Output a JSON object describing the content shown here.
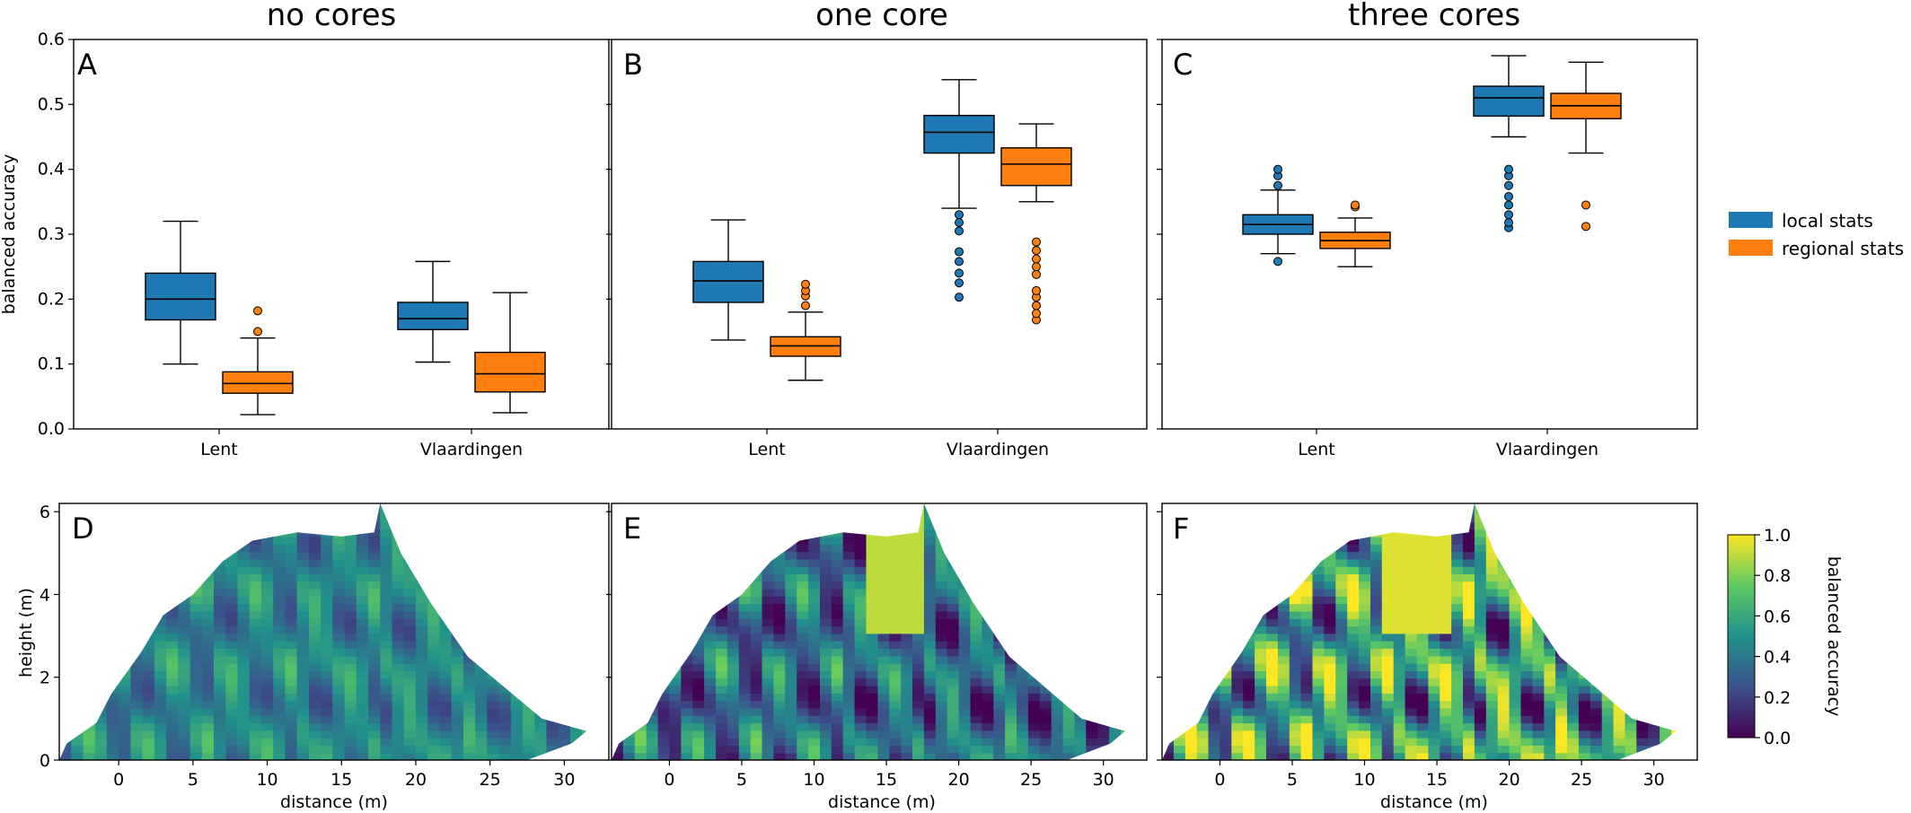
{
  "colors": {
    "local": "#1f77b4",
    "regional": "#ff7f0e",
    "outline": "#000000",
    "viridis": [
      "#440154",
      "#3b528b",
      "#21918c",
      "#5ec962",
      "#fde725"
    ]
  },
  "legend": {
    "placement": "right of panel C",
    "items": [
      {
        "label": "local stats",
        "color": "#1f77b4"
      },
      {
        "label": "regional stats",
        "color": "#ff7f0e"
      }
    ]
  },
  "colorbar": {
    "label": "balanced accuracy",
    "ticks": [
      "0.0",
      "0.2",
      "0.4",
      "0.6",
      "0.8",
      "1.0"
    ],
    "range": [
      0,
      1
    ],
    "colormap": "viridis"
  },
  "chart_data": [
    {
      "type": "box",
      "panel": "A",
      "title": "no cores",
      "ylabel": "balanced accuracy",
      "xlabel": "",
      "ylim": [
        0,
        0.6
      ],
      "yticks": [
        "0.0",
        "0.1",
        "0.2",
        "0.3",
        "0.4",
        "0.5",
        "0.6"
      ],
      "categories": [
        "Lent",
        "Vlaardingen"
      ],
      "series": [
        {
          "name": "local stats",
          "boxes": [
            {
              "whislo": 0.1,
              "q1": 0.168,
              "med": 0.2,
              "q3": 0.24,
              "whishi": 0.32,
              "fliers": []
            },
            {
              "whislo": 0.103,
              "q1": 0.153,
              "med": 0.17,
              "q3": 0.195,
              "whishi": 0.258,
              "fliers": []
            }
          ]
        },
        {
          "name": "regional stats",
          "boxes": [
            {
              "whislo": 0.022,
              "q1": 0.055,
              "med": 0.07,
              "q3": 0.088,
              "whishi": 0.14,
              "fliers": [
                0.15,
                0.182
              ]
            },
            {
              "whislo": 0.025,
              "q1": 0.057,
              "med": 0.085,
              "q3": 0.118,
              "whishi": 0.21,
              "fliers": []
            }
          ]
        }
      ]
    },
    {
      "type": "box",
      "panel": "B",
      "title": "one core",
      "ylabel": "",
      "xlabel": "",
      "ylim": [
        0,
        0.6
      ],
      "categories": [
        "Lent",
        "Vlaardingen"
      ],
      "series": [
        {
          "name": "local stats",
          "boxes": [
            {
              "whislo": 0.137,
              "q1": 0.195,
              "med": 0.228,
              "q3": 0.258,
              "whishi": 0.322,
              "fliers": []
            },
            {
              "whislo": 0.34,
              "q1": 0.425,
              "med": 0.457,
              "q3": 0.483,
              "whishi": 0.538,
              "fliers": [
                0.203,
                0.225,
                0.24,
                0.258,
                0.273,
                0.305,
                0.318,
                0.33
              ]
            }
          ]
        },
        {
          "name": "regional stats",
          "boxes": [
            {
              "whislo": 0.075,
              "q1": 0.112,
              "med": 0.128,
              "q3": 0.142,
              "whishi": 0.18,
              "fliers": [
                0.19,
                0.205,
                0.213,
                0.223
              ]
            },
            {
              "whislo": 0.35,
              "q1": 0.375,
              "med": 0.408,
              "q3": 0.433,
              "whishi": 0.47,
              "fliers": [
                0.168,
                0.178,
                0.19,
                0.203,
                0.213,
                0.238,
                0.25,
                0.262,
                0.275,
                0.288
              ]
            }
          ]
        }
      ]
    },
    {
      "type": "box",
      "panel": "C",
      "title": "three cores",
      "ylabel": "",
      "xlabel": "",
      "ylim": [
        0,
        0.6
      ],
      "categories": [
        "Lent",
        "Vlaardingen"
      ],
      "series": [
        {
          "name": "local stats",
          "boxes": [
            {
              "whislo": 0.27,
              "q1": 0.3,
              "med": 0.315,
              "q3": 0.33,
              "whishi": 0.368,
              "fliers": [
                0.258,
                0.375,
                0.39,
                0.4
              ]
            },
            {
              "whislo": 0.45,
              "q1": 0.482,
              "med": 0.51,
              "q3": 0.528,
              "whishi": 0.575,
              "fliers": [
                0.31,
                0.318,
                0.33,
                0.345,
                0.358,
                0.375,
                0.39,
                0.4
              ]
            }
          ]
        },
        {
          "name": "regional stats",
          "boxes": [
            {
              "whislo": 0.25,
              "q1": 0.278,
              "med": 0.29,
              "q3": 0.303,
              "whishi": 0.325,
              "fliers": [
                0.342,
                0.345
              ]
            },
            {
              "whislo": 0.425,
              "q1": 0.478,
              "med": 0.498,
              "q3": 0.517,
              "whishi": 0.565,
              "fliers": [
                0.312,
                0.345
              ]
            }
          ]
        }
      ]
    },
    {
      "type": "heatmap",
      "panel": "D",
      "title": "",
      "xlabel": "distance (m)",
      "ylabel": "height (m)",
      "xlim": [
        -4,
        33
      ],
      "ylim": [
        0,
        6.2
      ],
      "xticks": [
        "0",
        "5",
        "10",
        "15",
        "20",
        "25",
        "30"
      ],
      "yticks": [
        "0",
        "2",
        "4",
        "6"
      ],
      "outline": [
        [
          -4,
          0
        ],
        [
          -3.5,
          0.4
        ],
        [
          -1.5,
          0.9
        ],
        [
          -0.5,
          1.6
        ],
        [
          1.5,
          2.6
        ],
        [
          3,
          3.5
        ],
        [
          5,
          4.0
        ],
        [
          7,
          4.8
        ],
        [
          9,
          5.3
        ],
        [
          12,
          5.5
        ],
        [
          15,
          5.4
        ],
        [
          17.2,
          5.5
        ],
        [
          17.6,
          6.2
        ],
        [
          19,
          5.0
        ],
        [
          21,
          3.8
        ],
        [
          23.5,
          2.5
        ],
        [
          26.5,
          1.6
        ],
        [
          28.5,
          1.0
        ],
        [
          31.5,
          0.7
        ],
        [
          30.5,
          0.4
        ],
        [
          27.5,
          0
        ],
        [
          -4,
          0
        ]
      ],
      "tone": "mixed"
    },
    {
      "type": "heatmap",
      "panel": "E",
      "title": "",
      "xlabel": "distance (m)",
      "ylabel": "",
      "xlim": [
        -4,
        33
      ],
      "ylim": [
        0,
        6.2
      ],
      "xticks": [
        "0",
        "5",
        "10",
        "15",
        "20",
        "25",
        "30"
      ],
      "yticks": [
        "0",
        "2",
        "4",
        "6"
      ],
      "outline": [
        [
          -4,
          0
        ],
        [
          -3.5,
          0.4
        ],
        [
          -1.5,
          0.9
        ],
        [
          -0.5,
          1.6
        ],
        [
          1.5,
          2.6
        ],
        [
          3,
          3.5
        ],
        [
          5,
          4.0
        ],
        [
          7,
          4.8
        ],
        [
          9,
          5.3
        ],
        [
          12,
          5.5
        ],
        [
          15,
          5.4
        ],
        [
          17.2,
          5.5
        ],
        [
          17.6,
          6.2
        ],
        [
          19,
          5.0
        ],
        [
          21,
          3.8
        ],
        [
          23.5,
          2.5
        ],
        [
          26.5,
          1.6
        ],
        [
          28.5,
          1.0
        ],
        [
          31.5,
          0.7
        ],
        [
          30.5,
          0.4
        ],
        [
          27.5,
          0
        ],
        [
          -4,
          0
        ]
      ],
      "tone": "dark"
    },
    {
      "type": "heatmap",
      "panel": "F",
      "title": "",
      "xlabel": "distance (m)",
      "ylabel": "",
      "xlim": [
        -4,
        33
      ],
      "ylim": [
        0,
        6.2
      ],
      "xticks": [
        "0",
        "5",
        "10",
        "15",
        "20",
        "25",
        "30"
      ],
      "yticks": [
        "0",
        "2",
        "4",
        "6"
      ],
      "outline": [
        [
          -4,
          0
        ],
        [
          -3.5,
          0.4
        ],
        [
          -1.5,
          0.9
        ],
        [
          -0.5,
          1.6
        ],
        [
          1.5,
          2.6
        ],
        [
          3,
          3.5
        ],
        [
          5,
          4.0
        ],
        [
          7,
          4.8
        ],
        [
          9,
          5.3
        ],
        [
          12,
          5.5
        ],
        [
          15,
          5.4
        ],
        [
          17.2,
          5.5
        ],
        [
          17.6,
          6.2
        ],
        [
          19,
          5.0
        ],
        [
          21,
          3.8
        ],
        [
          23.5,
          2.5
        ],
        [
          26.5,
          1.6
        ],
        [
          28.5,
          1.0
        ],
        [
          31.5,
          0.7
        ],
        [
          30.5,
          0.4
        ],
        [
          27.5,
          0
        ],
        [
          -4,
          0
        ]
      ],
      "tone": "bright"
    }
  ]
}
